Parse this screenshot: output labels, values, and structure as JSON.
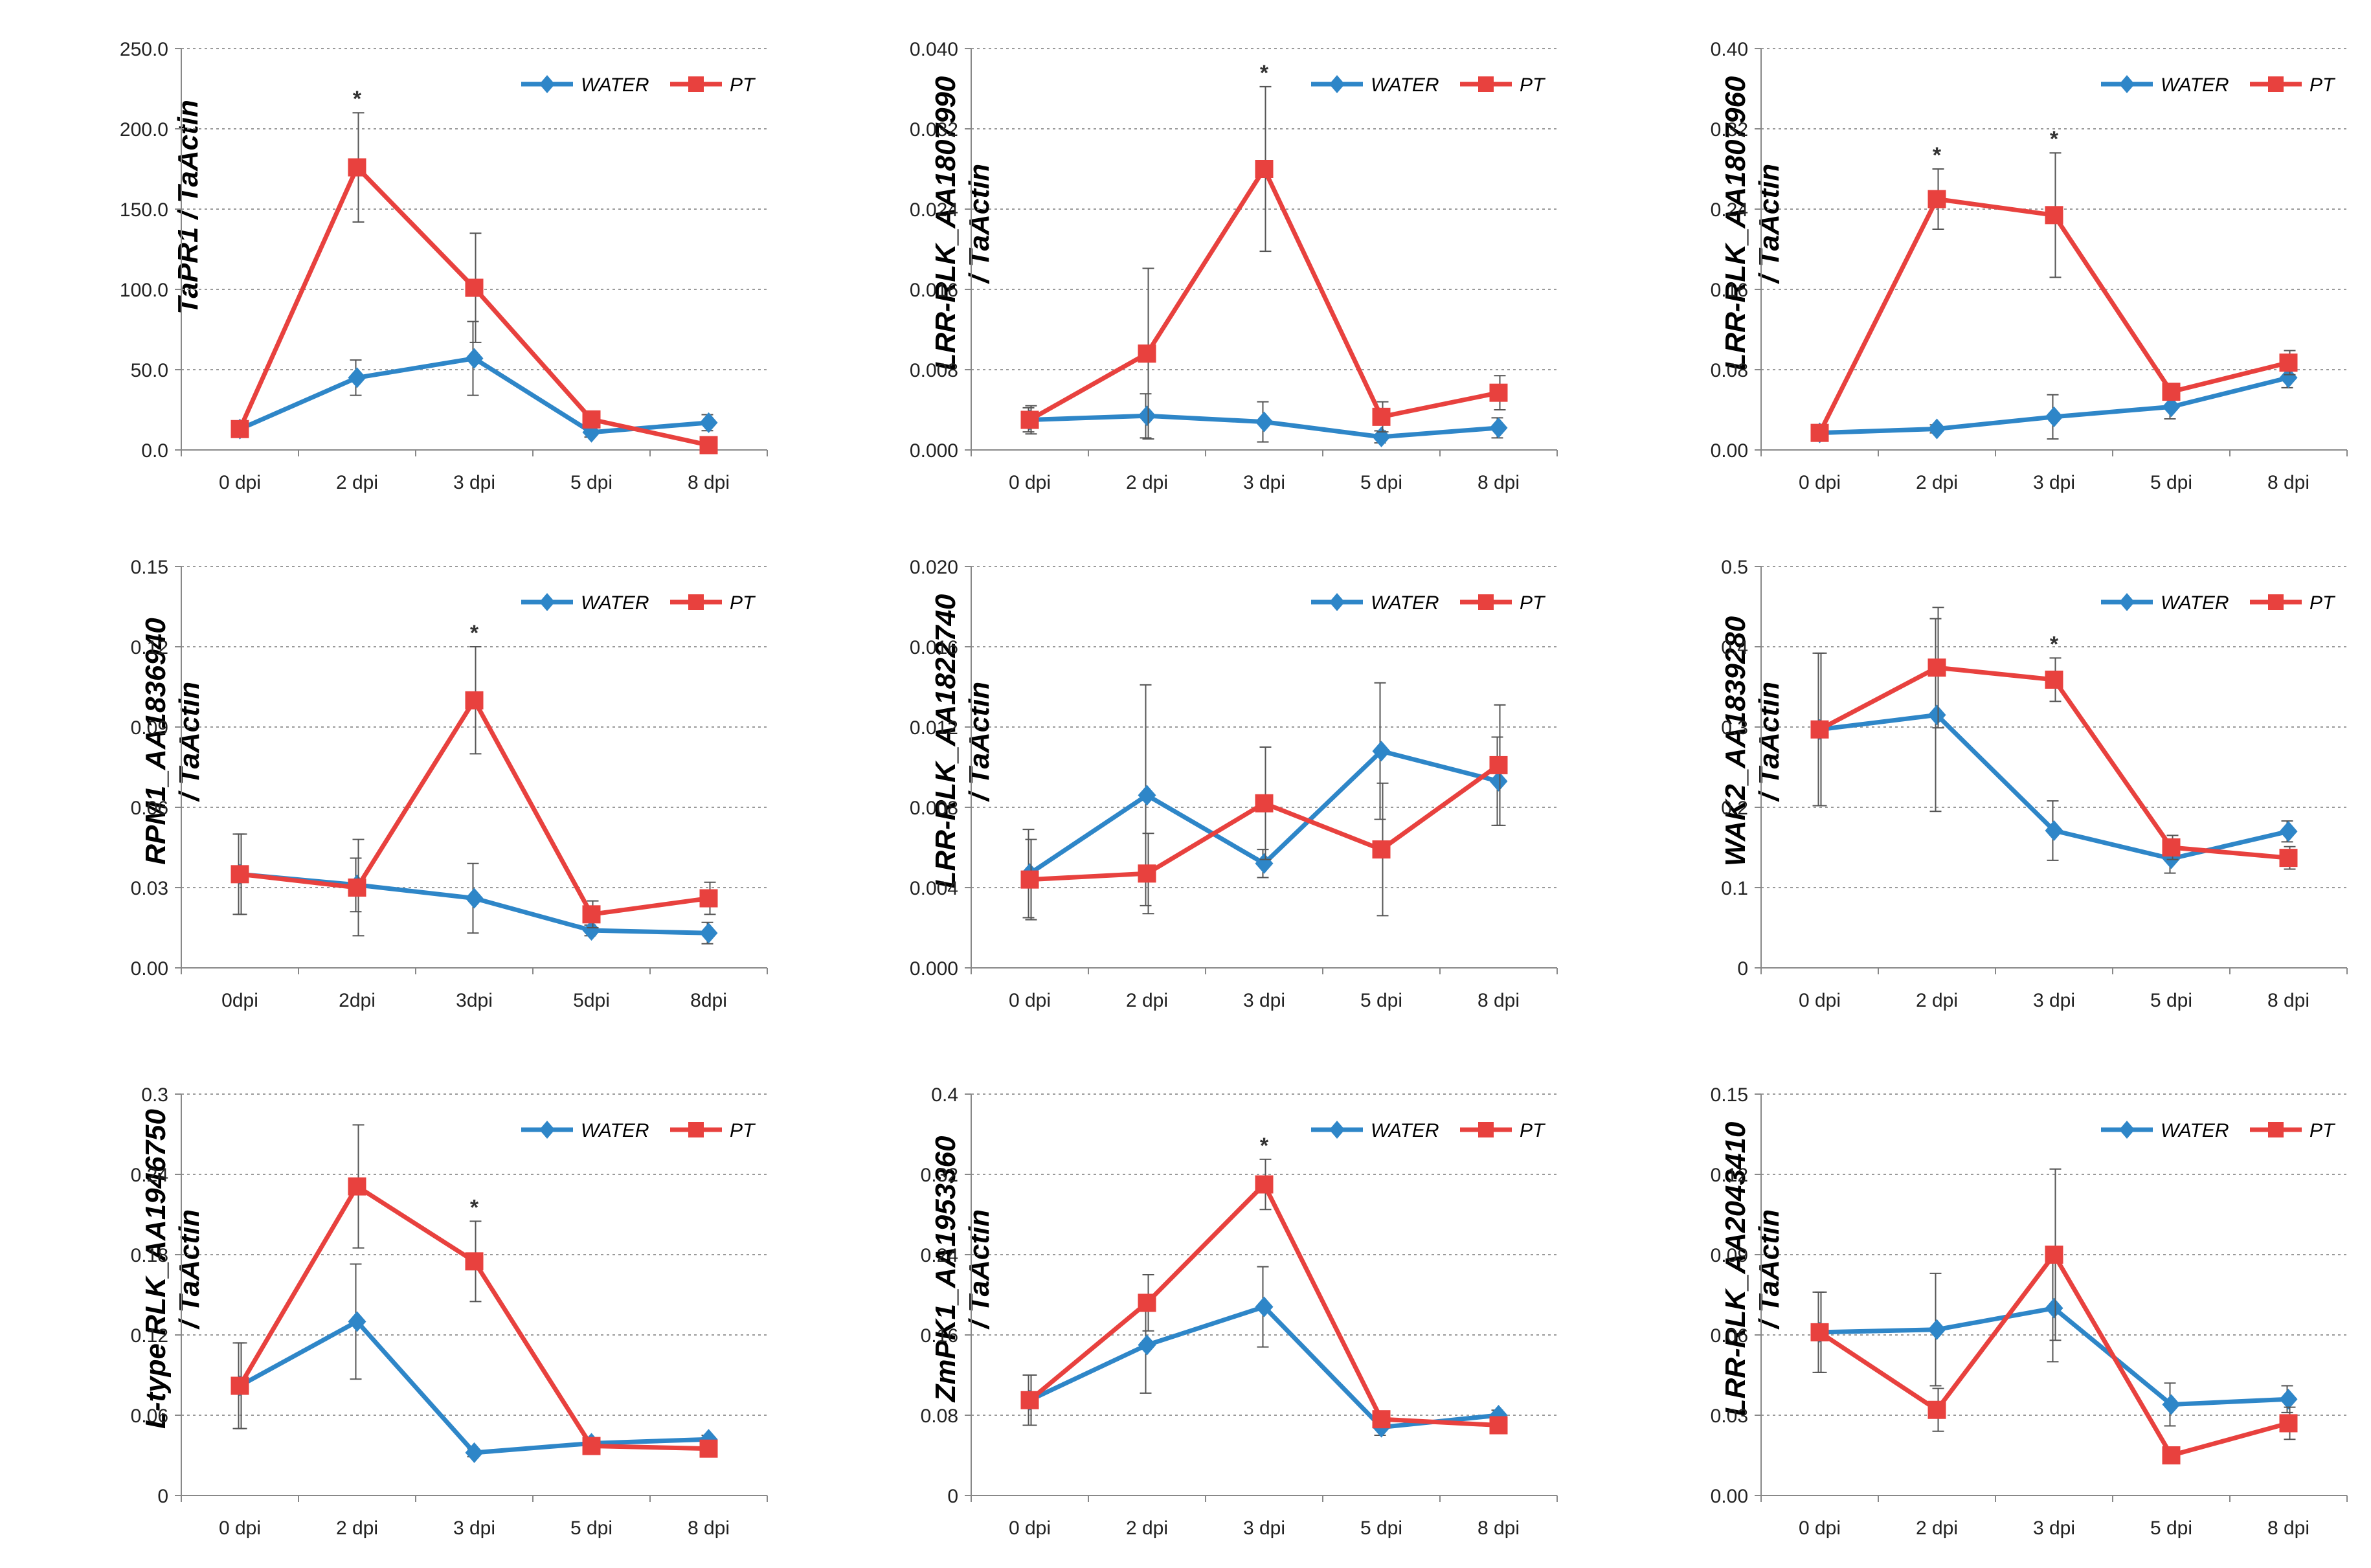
{
  "figure": {
    "legend_water": "WATER",
    "legend_pt": "PT",
    "colors": {
      "water": "#2E86C8",
      "pt": "#E8413E",
      "axis": "#888888",
      "grid": "#9A9A9A",
      "text": "#222222"
    }
  },
  "chart_data": [
    {
      "type": "line",
      "title": "",
      "ylabel_lines": [
        "TaPR1 / TaActin"
      ],
      "categories": [
        "0 dpi",
        "2 dpi",
        "3 dpi",
        "5 dpi",
        "8 dpi"
      ],
      "yticks": [
        "0.0",
        "50.0",
        "100.0",
        "150.0",
        "200.0",
        "250.0"
      ],
      "ylim": [
        0,
        250
      ],
      "series": [
        {
          "name": "WATER",
          "values": [
            13,
            45,
            57,
            11,
            17
          ],
          "errors": [
            2,
            11,
            23,
            3,
            5
          ]
        },
        {
          "name": "PT",
          "values": [
            13,
            176,
            101,
            19,
            3
          ],
          "errors": [
            2,
            34,
            34,
            4,
            2
          ]
        }
      ],
      "significance": [
        "",
        "*",
        "",
        "",
        ""
      ]
    },
    {
      "type": "line",
      "title": "",
      "ylabel_lines": [
        "LRR-RLK_AA1807990",
        "/ TaActin"
      ],
      "categories": [
        "0 dpi",
        "2 dpi",
        "3 dpi",
        "5 dpi",
        "8 dpi"
      ],
      "yticks": [
        "0.000",
        "0.008",
        "0.016",
        "0.024",
        "0.032",
        "0.040"
      ],
      "ylim": [
        0,
        0.04
      ],
      "series": [
        {
          "name": "WATER",
          "values": [
            0.003,
            0.0034,
            0.0028,
            0.0013,
            0.0022
          ],
          "errors": [
            0.0012,
            0.0022,
            0.002,
            0.0006,
            0.001
          ]
        },
        {
          "name": "PT",
          "values": [
            0.003,
            0.0096,
            0.028,
            0.0033,
            0.0057
          ],
          "errors": [
            0.0014,
            0.0085,
            0.0082,
            0.0015,
            0.0017
          ]
        }
      ],
      "significance": [
        "",
        "",
        "*",
        "",
        ""
      ]
    },
    {
      "type": "line",
      "title": "",
      "ylabel_lines": [
        "LRR-RLK_AA1807960",
        "/ TaActin"
      ],
      "categories": [
        "0 dpi",
        "2 dpi",
        "3 dpi",
        "5 dpi",
        "8 dpi"
      ],
      "yticks": [
        "0.00",
        "0.08",
        "0.16",
        "0.24",
        "0.32",
        "0.40"
      ],
      "ylim": [
        0,
        0.4
      ],
      "series": [
        {
          "name": "WATER",
          "values": [
            0.017,
            0.021,
            0.033,
            0.043,
            0.072
          ],
          "errors": [
            0.003,
            0.004,
            0.022,
            0.012,
            0.01
          ]
        },
        {
          "name": "PT",
          "values": [
            0.017,
            0.25,
            0.234,
            0.058,
            0.087
          ],
          "errors": [
            0.003,
            0.03,
            0.062,
            0.008,
            0.012
          ]
        }
      ],
      "significance": [
        "",
        "*",
        "*",
        "",
        ""
      ]
    },
    {
      "type": "line",
      "title": "",
      "ylabel_lines": [
        "RPM1_AA1836940",
        "/ TaActin"
      ],
      "categories": [
        "0dpi",
        "2dpi",
        "3dpi",
        "5dpi",
        "8dpi"
      ],
      "yticks": [
        "0.00",
        "0.03",
        "0.06",
        "0.09",
        "0.12",
        "0.15"
      ],
      "ylim": [
        0,
        0.15
      ],
      "series": [
        {
          "name": "WATER",
          "values": [
            0.035,
            0.031,
            0.026,
            0.014,
            0.013
          ],
          "errors": [
            0.015,
            0.01,
            0.013,
            0.002,
            0.004
          ]
        },
        {
          "name": "PT",
          "values": [
            0.035,
            0.03,
            0.1,
            0.02,
            0.026
          ],
          "errors": [
            0.015,
            0.018,
            0.02,
            0.005,
            0.006
          ]
        }
      ],
      "significance": [
        "",
        "",
        "*",
        "",
        ""
      ]
    },
    {
      "type": "line",
      "title": "",
      "ylabel_lines": [
        "LRR-RLK_AA1822740",
        "/ TaActin"
      ],
      "categories": [
        "0 dpi",
        "2 dpi",
        "3 dpi",
        "5 dpi",
        "8 dpi"
      ],
      "yticks": [
        "0.000",
        "0.004",
        "0.008",
        "0.012",
        "0.016",
        "0.020"
      ],
      "ylim": [
        0,
        0.02
      ],
      "series": [
        {
          "name": "WATER",
          "values": [
            0.0047,
            0.0086,
            0.0052,
            0.0108,
            0.0093
          ],
          "errors": [
            0.0022,
            0.0055,
            0.0007,
            0.0034,
            0.0022
          ]
        },
        {
          "name": "PT",
          "values": [
            0.0044,
            0.0047,
            0.0082,
            0.0059,
            0.0101
          ],
          "errors": [
            0.002,
            0.002,
            0.0028,
            0.0033,
            0.003
          ]
        }
      ],
      "significance": [
        "",
        "",
        "",
        "",
        ""
      ]
    },
    {
      "type": "line",
      "title": "",
      "ylabel_lines": [
        "WAK2_AA1839280",
        "/ TaActin"
      ],
      "categories": [
        "0 dpi",
        "2 dpi",
        "3 dpi",
        "5 dpi",
        "8 dpi"
      ],
      "yticks": [
        "0",
        "0.1",
        "0.2",
        "0.3",
        "0.4",
        "0.5"
      ],
      "ylim": [
        0,
        0.5
      ],
      "series": [
        {
          "name": "WATER",
          "values": [
            0.297,
            0.315,
            0.171,
            0.136,
            0.17
          ],
          "errors": [
            0.095,
            0.12,
            0.037,
            0.018,
            0.013
          ]
        },
        {
          "name": "PT",
          "values": [
            0.297,
            0.374,
            0.359,
            0.15,
            0.137
          ],
          "errors": [
            0.095,
            0.075,
            0.027,
            0.015,
            0.014
          ]
        }
      ],
      "significance": [
        "",
        "",
        "*",
        "",
        ""
      ]
    },
    {
      "type": "line",
      "title": "",
      "ylabel_lines": [
        "L-type RLK_AA1946750",
        "/ TaActin"
      ],
      "categories": [
        "0 dpi",
        "2 dpi",
        "3 dpi",
        "5 dpi",
        "8 dpi"
      ],
      "yticks": [
        "0",
        "0.06",
        "0.12",
        "0.18",
        "0.24",
        "0.3"
      ],
      "ylim": [
        0,
        0.3
      ],
      "series": [
        {
          "name": "WATER",
          "values": [
            0.082,
            0.13,
            0.032,
            0.039,
            0.042
          ],
          "errors": [
            0.032,
            0.043,
            0.003,
            0.003,
            0.003
          ]
        },
        {
          "name": "PT",
          "values": [
            0.082,
            0.231,
            0.175,
            0.037,
            0.035
          ],
          "errors": [
            0.032,
            0.046,
            0.03,
            0.004,
            0.003
          ]
        }
      ],
      "significance": [
        "",
        "",
        "*",
        "",
        ""
      ]
    },
    {
      "type": "line",
      "title": "",
      "ylabel_lines": [
        "ZmPK1_AA1953360",
        "/ TaActin"
      ],
      "categories": [
        "0 dpi",
        "2 dpi",
        "3 dpi",
        "5 dpi",
        "8 dpi"
      ],
      "yticks": [
        "0",
        "0.08",
        "0.16",
        "0.24",
        "0.32",
        "0.4"
      ],
      "ylim": [
        0,
        0.4
      ],
      "series": [
        {
          "name": "WATER",
          "values": [
            0.095,
            0.15,
            0.188,
            0.068,
            0.08
          ],
          "errors": [
            0.025,
            0.048,
            0.04,
            0.008,
            0.005
          ]
        },
        {
          "name": "PT",
          "values": [
            0.095,
            0.192,
            0.31,
            0.076,
            0.07
          ],
          "errors": [
            0.025,
            0.028,
            0.025,
            0.006,
            0.005
          ]
        }
      ],
      "significance": [
        "",
        "",
        "*",
        "",
        ""
      ]
    },
    {
      "type": "line",
      "title": "",
      "ylabel_lines": [
        "LRR-RLK_AA2043410",
        "/ TaActin"
      ],
      "categories": [
        "0 dpi",
        "2 dpi",
        "3 dpi",
        "5 dpi",
        "8 dpi"
      ],
      "yticks": [
        "0.00",
        "0.03",
        "0.06",
        "0.09",
        "0.12",
        "0.15"
      ],
      "ylim": [
        0,
        0.15
      ],
      "series": [
        {
          "name": "WATER",
          "values": [
            0.061,
            0.062,
            0.07,
            0.034,
            0.036
          ],
          "errors": [
            0.015,
            0.021,
            0.02,
            0.008,
            0.005
          ]
        },
        {
          "name": "PT",
          "values": [
            0.061,
            0.032,
            0.09,
            0.015,
            0.027
          ],
          "errors": [
            0.015,
            0.008,
            0.032,
            0.002,
            0.006
          ]
        }
      ],
      "significance": [
        "",
        "",
        "",
        "",
        ""
      ]
    }
  ]
}
